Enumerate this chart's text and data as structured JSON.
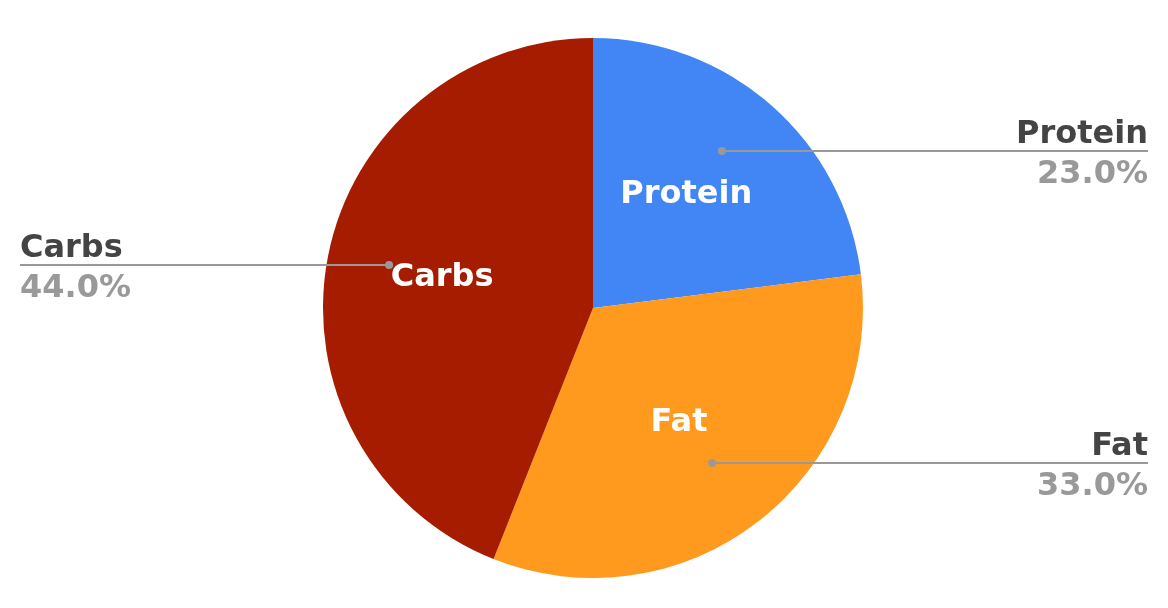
{
  "chart_data": {
    "type": "pie",
    "categories": [
      "Protein",
      "Fat",
      "Carbs"
    ],
    "values": [
      23.0,
      33.0,
      44.0
    ],
    "colors": [
      "#4285f4",
      "#ff9a1f",
      "#a61c00"
    ],
    "value_labels": [
      "23.0%",
      "33.0%",
      "44.0%"
    ],
    "legend": false
  }
}
